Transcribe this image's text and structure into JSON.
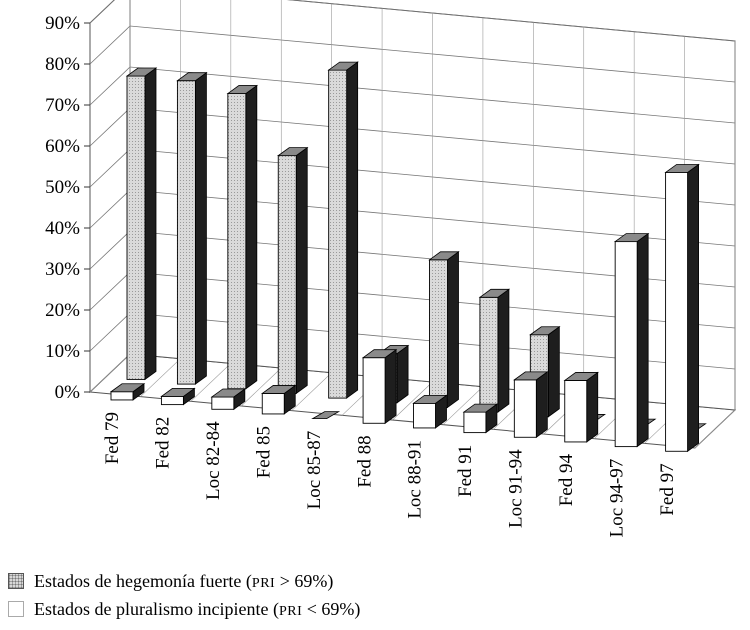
{
  "chart_data": {
    "type": "bar",
    "categories": [
      "Fed 79",
      "Fed 82",
      "Loc 82-84",
      "Fed 85",
      "Loc 85-87",
      "Fed 88",
      "Loc 88-91",
      "Fed 91",
      "Loc 91-94",
      "Fed 94",
      "Loc 94-97",
      "Fed 97"
    ],
    "series": [
      {
        "name": "Estados de pluralismo incipiente (PRI < 69%)",
        "values": [
          2,
          2,
          3,
          5,
          0,
          16,
          6,
          5,
          14,
          15,
          50,
          68
        ]
      },
      {
        "name": "Estados de hegemonía fuerte (PRI > 69%)",
        "values": [
          74,
          74,
          72,
          58,
          80,
          12,
          36,
          28,
          20,
          0,
          0,
          0
        ]
      }
    ],
    "y_ticks": [
      "0%",
      "10%",
      "20%",
      "30%",
      "40%",
      "50%",
      "60%",
      "70%",
      "80%",
      "90%"
    ],
    "ylim": [
      0,
      90
    ],
    "grid": true,
    "legend_position": "bottom-left",
    "colors": {
      "hegemonia": "#d6d6d6",
      "pluralismo": "#ffffff",
      "top": "#8a8a8a",
      "side": "#1e1e1e"
    }
  },
  "legend": {
    "items": [
      {
        "swatch": "hatched-gray",
        "text_before": "Estados de hegemonía fuerte (",
        "small": "PRI",
        "text_after": " > 69%)"
      },
      {
        "swatch": "white",
        "text_before": "Estados de pluralismo incipiente (",
        "small": "PRI",
        "text_after": " < 69%)"
      }
    ]
  }
}
